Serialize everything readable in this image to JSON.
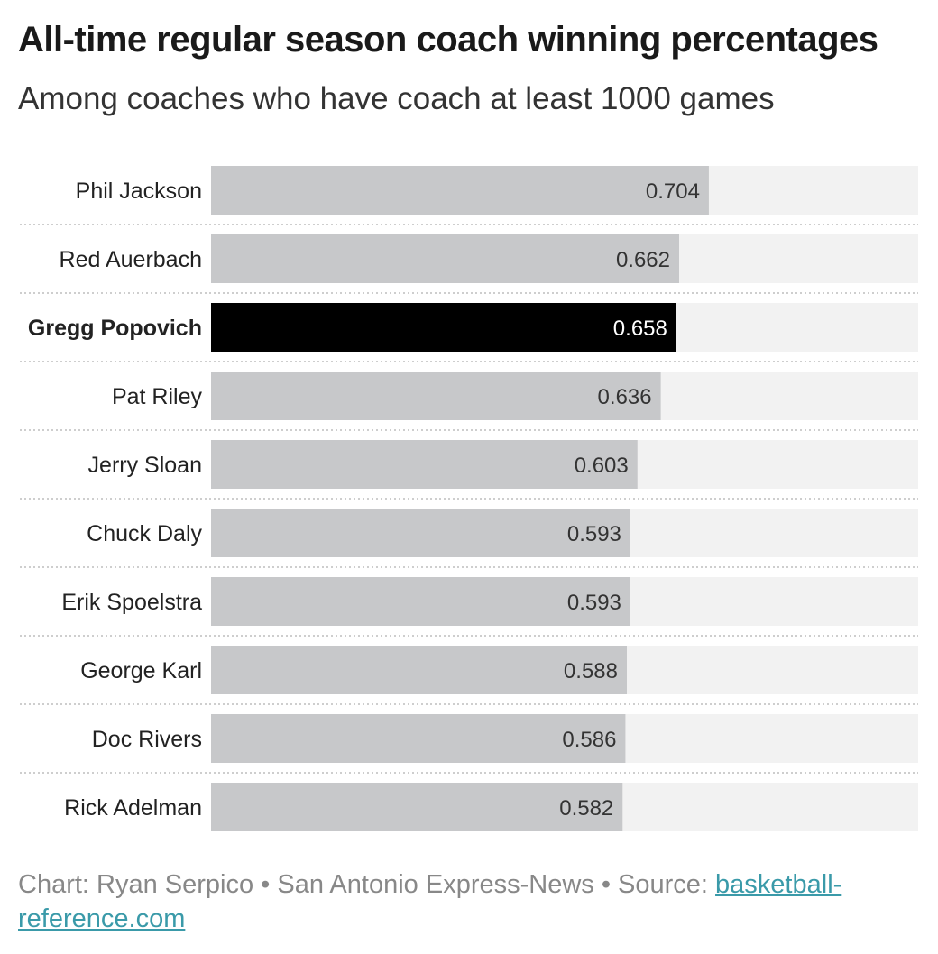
{
  "header": {
    "title": "All-time regular season coach winning percentages",
    "subtitle": "Among coaches who have coach at least 1000 games"
  },
  "footer": {
    "credit": "Chart: Ryan Serpico • San Antonio Express-News • Source: ",
    "source_link": "basketball-reference.com"
  },
  "colors": {
    "bar": "#c7c8ca",
    "highlight_bar": "#000000",
    "track": "#f2f2f2",
    "value_label": "#333333",
    "highlight_value_label": "#ffffff",
    "link": "#3a9aa9"
  },
  "chart_data": {
    "type": "bar",
    "orientation": "horizontal",
    "categories": [
      "Phil Jackson",
      "Red Auerbach",
      "Gregg Popovich",
      "Pat Riley",
      "Jerry Sloan",
      "Chuck Daly",
      "Erik Spoelstra",
      "George Karl",
      "Doc Rivers",
      "Rick Adelman"
    ],
    "values": [
      0.704,
      0.662,
      0.658,
      0.636,
      0.603,
      0.593,
      0.593,
      0.588,
      0.586,
      0.582
    ],
    "value_labels": [
      "0.704",
      "0.662",
      "0.658",
      "0.636",
      "0.603",
      "0.593",
      "0.593",
      "0.588",
      "0.586",
      "0.582"
    ],
    "highlighted": "Gregg Popovich",
    "xlim": [
      0,
      1
    ],
    "grid": false,
    "legend": "none"
  }
}
